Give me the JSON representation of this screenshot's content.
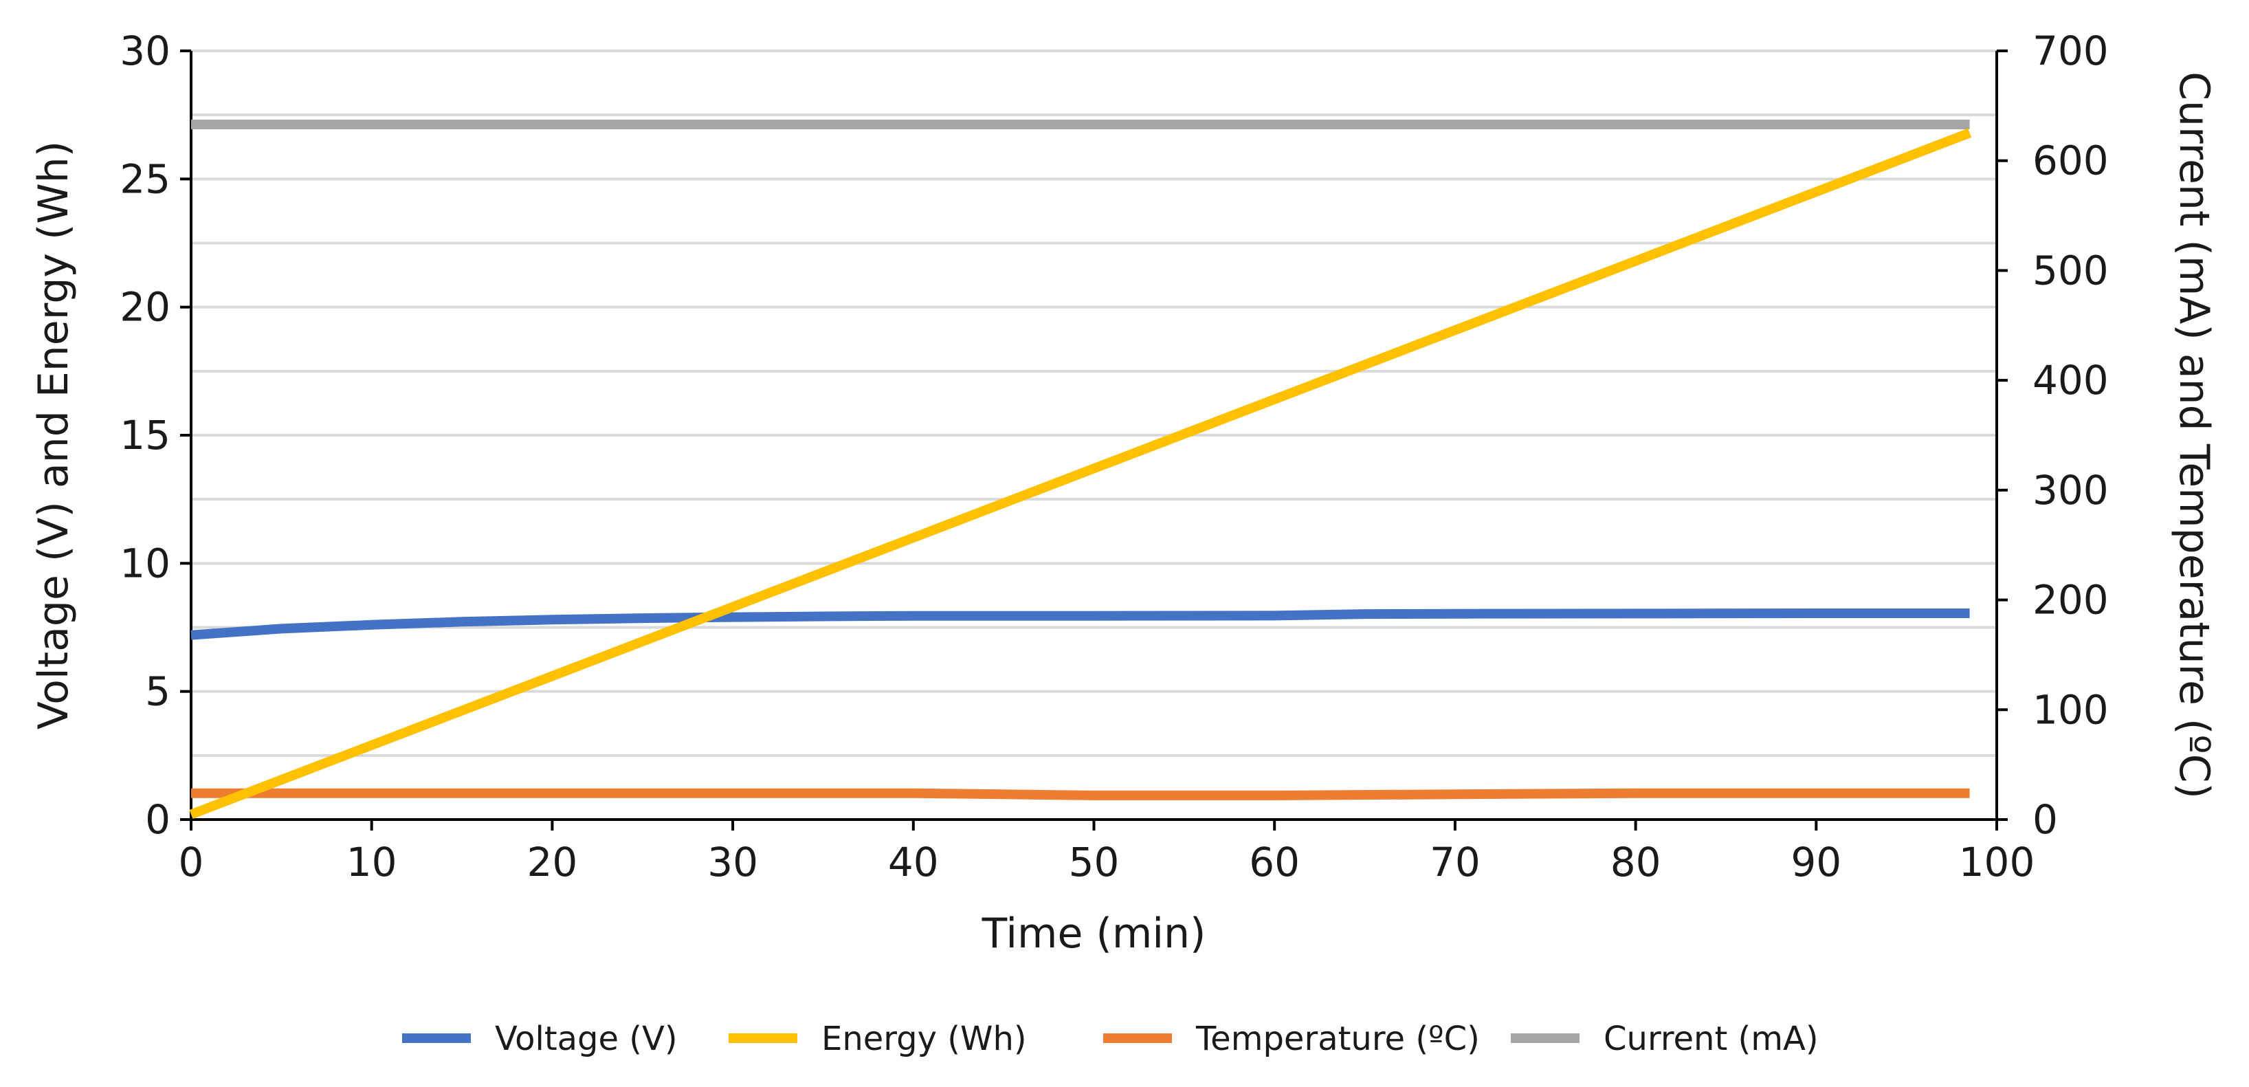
{
  "chart_data": {
    "type": "line",
    "xlabel": "Time (min)",
    "ylabel_left": "Voltage (V) and Energy (Wh)",
    "ylabel_right": "Current (mA) and Temperature (ºC)",
    "xlim": [
      0,
      100
    ],
    "ylim_left": [
      0,
      30
    ],
    "ylim_right": [
      0,
      700
    ],
    "x_ticks": [
      0,
      10,
      20,
      30,
      40,
      50,
      60,
      70,
      80,
      90,
      100
    ],
    "y_left_ticks": [
      0,
      5,
      10,
      15,
      20,
      25,
      30
    ],
    "y_right_ticks": [
      0,
      100,
      200,
      300,
      400,
      500,
      600,
      700
    ],
    "grid": "horizontal",
    "legend_position": "bottom",
    "series": [
      {
        "name": "Voltage (V)",
        "axis": "left",
        "color": "#4472C4",
        "x": [
          0,
          5,
          10,
          15,
          20,
          25,
          30,
          35,
          40,
          50,
          60,
          65,
          70,
          80,
          90,
          98.5
        ],
        "y": [
          7.2,
          7.45,
          7.6,
          7.72,
          7.8,
          7.86,
          7.9,
          7.93,
          7.95,
          7.95,
          7.96,
          8.02,
          8.03,
          8.04,
          8.05,
          8.05
        ]
      },
      {
        "name": "Energy (Wh)",
        "axis": "left",
        "color": "#FFC000",
        "x": [
          0,
          10,
          20,
          30,
          40,
          50,
          60,
          70,
          80,
          90,
          98.5
        ],
        "y": [
          0.2,
          2.9,
          5.6,
          8.3,
          11.0,
          13.7,
          16.4,
          19.1,
          21.8,
          24.5,
          26.8
        ]
      },
      {
        "name": "Temperature (ºC)",
        "axis": "right",
        "color": "#ED7D31",
        "x": [
          0,
          10,
          20,
          30,
          35,
          40,
          45,
          50,
          60,
          70,
          80,
          90,
          98.5
        ],
        "y": [
          24,
          24,
          24,
          24,
          24,
          24,
          23,
          22,
          22,
          23,
          24,
          24,
          24
        ]
      },
      {
        "name": "Current (mA)",
        "axis": "right",
        "color": "#A5A5A5",
        "x": [
          0,
          20,
          40,
          60,
          80,
          98.5
        ],
        "y": [
          633,
          633,
          633,
          633,
          633,
          633
        ]
      }
    ]
  }
}
